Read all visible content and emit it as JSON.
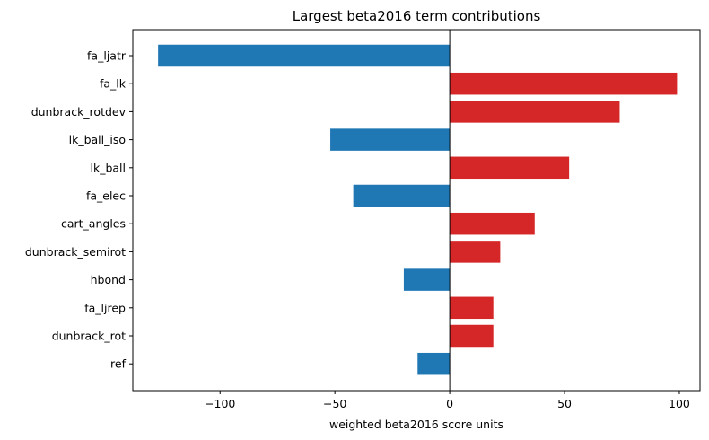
{
  "chart_data": {
    "type": "bar",
    "orientation": "horizontal",
    "title": "Largest beta2016 term contributions",
    "xlabel": "weighted beta2016 score units",
    "ylabel": "",
    "xlim": [
      -138,
      109
    ],
    "xticks": [
      -100,
      -50,
      0,
      50,
      100
    ],
    "xtick_labels": [
      "−100",
      "−50",
      "0",
      "50",
      "100"
    ],
    "categories": [
      "fa_ljatr",
      "fa_lk",
      "dunbrack_rotdev",
      "lk_ball_iso",
      "lk_ball",
      "fa_elec",
      "cart_angles",
      "dunbrack_semirot",
      "hbond",
      "fa_ljrep",
      "dunbrack_rot",
      "ref"
    ],
    "values": [
      -127,
      99,
      74,
      -52,
      52,
      -42,
      37,
      22,
      -20,
      19,
      19,
      -14
    ],
    "colors": {
      "negative": "#1f77b4",
      "positive": "#d62728"
    },
    "grid": false,
    "zero_line": true
  }
}
